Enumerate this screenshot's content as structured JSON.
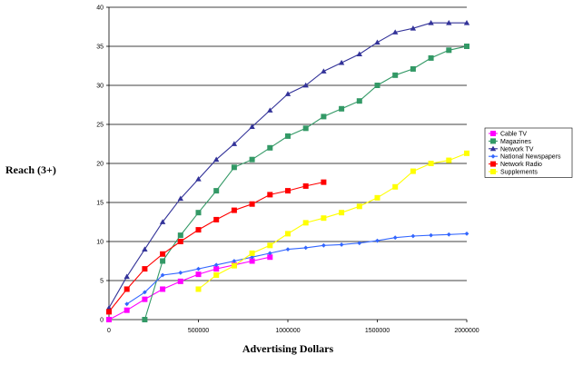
{
  "chart_data": {
    "type": "line",
    "xlabel": "Advertising Dollars",
    "ylabel": "Reach (3+)",
    "xlim": [
      0,
      2000000
    ],
    "ylim": [
      0,
      40
    ],
    "x_ticks": [
      "0",
      "500000",
      "1000000",
      "1500000",
      "2000000"
    ],
    "y_ticks": [
      "0",
      "5",
      "10",
      "15",
      "20",
      "25",
      "30",
      "35",
      "40"
    ],
    "grid": "horizontal",
    "legend_position": "right",
    "series": [
      {
        "name": "Cable TV",
        "color": "#ff00ff",
        "marker": "square",
        "x": [
          0,
          100000,
          200000,
          300000,
          400000,
          500000,
          600000,
          700000,
          800000,
          900000
        ],
        "y": [
          0,
          1.2,
          2.6,
          3.9,
          4.9,
          5.8,
          6.5,
          7.0,
          7.5,
          8.0
        ]
      },
      {
        "name": "Magazines",
        "color": "#339966",
        "marker": "square",
        "x": [
          200000,
          300000,
          400000,
          500000,
          600000,
          700000,
          800000,
          900000,
          1000000,
          1100000,
          1200000,
          1300000,
          1400000,
          1500000,
          1600000,
          1700000,
          1800000,
          1900000,
          2000000
        ],
        "y": [
          0,
          7.5,
          10.8,
          13.7,
          16.5,
          19.5,
          20.5,
          22.0,
          23.5,
          24.5,
          26.0,
          27.0,
          28.0,
          30.0,
          31.3,
          32.1,
          33.5,
          34.5,
          35.0
        ]
      },
      {
        "name": "Network TV",
        "color": "#333399",
        "marker": "triangle",
        "x": [
          0,
          100000,
          200000,
          300000,
          400000,
          500000,
          600000,
          700000,
          800000,
          900000,
          1000000,
          1100000,
          1200000,
          1300000,
          1400000,
          1500000,
          1600000,
          1700000,
          1800000,
          1900000,
          2000000
        ],
        "y": [
          1.5,
          5.5,
          9.0,
          12.5,
          15.5,
          18.0,
          20.5,
          22.5,
          24.7,
          26.8,
          28.9,
          30.0,
          31.8,
          32.9,
          34.0,
          35.5,
          36.8,
          37.3,
          38.0,
          38.0,
          38.0
        ]
      },
      {
        "name": "National Newspapers",
        "color": "#3366ff",
        "marker": "diamond",
        "x": [
          100000,
          200000,
          300000,
          400000,
          500000,
          600000,
          700000,
          800000,
          900000,
          1000000,
          1100000,
          1200000,
          1300000,
          1400000,
          1500000,
          1600000,
          1700000,
          1800000,
          1900000,
          2000000
        ],
        "y": [
          2.0,
          3.5,
          5.7,
          6.0,
          6.5,
          7.0,
          7.5,
          8.0,
          8.5,
          9.0,
          9.2,
          9.5,
          9.6,
          9.8,
          10.1,
          10.5,
          10.7,
          10.8,
          10.9,
          11.0
        ]
      },
      {
        "name": "Network Radio",
        "color": "#ff0000",
        "marker": "square",
        "x": [
          0,
          100000,
          200000,
          300000,
          400000,
          500000,
          600000,
          700000,
          800000,
          900000,
          1000000,
          1100000,
          1200000
        ],
        "y": [
          1.0,
          3.9,
          6.5,
          8.4,
          10.0,
          11.5,
          12.8,
          14.0,
          14.8,
          16.0,
          16.5,
          17.1,
          17.6
        ]
      },
      {
        "name": "Supplements",
        "color": "#ffff00",
        "marker": "square",
        "x": [
          500000,
          600000,
          700000,
          800000,
          900000,
          1000000,
          1100000,
          1200000,
          1300000,
          1400000,
          1500000,
          1600000,
          1700000,
          1800000,
          1900000,
          2000000
        ],
        "y": [
          3.9,
          5.7,
          6.9,
          8.5,
          9.5,
          11.0,
          12.4,
          13.0,
          13.7,
          14.5,
          15.6,
          17.0,
          19.0,
          20.0,
          20.4,
          21.3
        ]
      }
    ]
  }
}
